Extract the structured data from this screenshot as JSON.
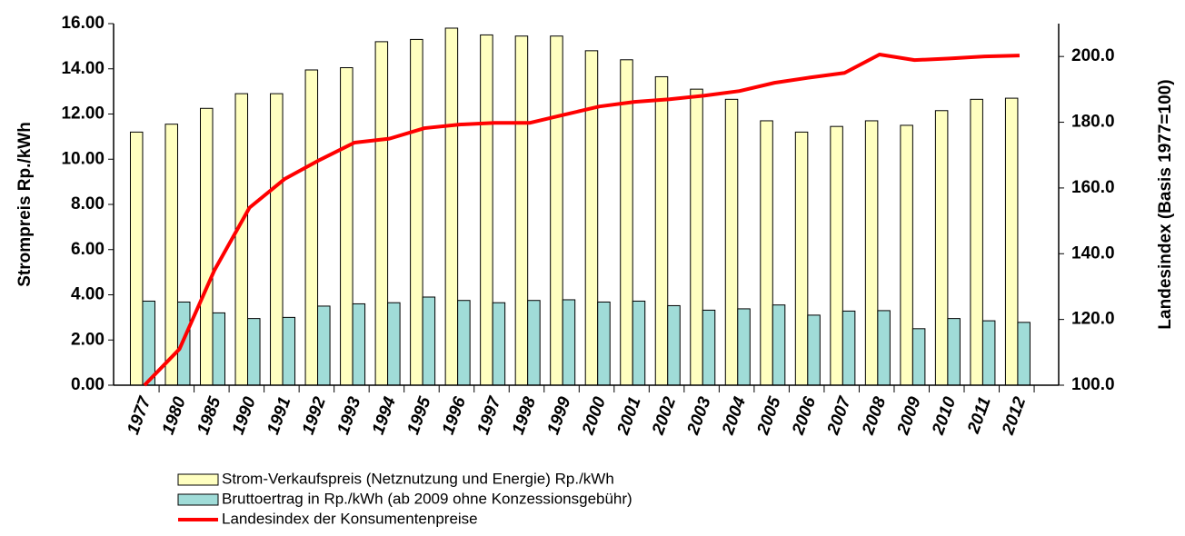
{
  "chart_data": {
    "type": "bar-line",
    "ylabel": "Strompreis Rp./kWh",
    "y2label": "Landesindex (Basis 1977=100)",
    "categories": [
      "1977",
      "1980",
      "1985",
      "1990",
      "1991",
      "1992",
      "1993",
      "1994",
      "1995",
      "1996",
      "1997",
      "1998",
      "1999",
      "2000",
      "2001",
      "2002",
      "2003",
      "2004",
      "2005",
      "2006",
      "2007",
      "2008",
      "2009",
      "2010",
      "2011",
      "2012"
    ],
    "ylim": [
      0,
      16
    ],
    "yticks": [
      {
        "value": 0,
        "label": "0.00"
      },
      {
        "value": 2,
        "label": "2.00"
      },
      {
        "value": 4,
        "label": "4.00"
      },
      {
        "value": 6,
        "label": "6.00"
      },
      {
        "value": 8,
        "label": "8.00"
      },
      {
        "value": 10,
        "label": "10.00"
      },
      {
        "value": 12,
        "label": "12.00"
      },
      {
        "value": 14,
        "label": "14.00"
      },
      {
        "value": 16,
        "label": "16.00"
      }
    ],
    "y2lim": [
      100,
      210
    ],
    "y2ticks": [
      {
        "value": 100,
        "label": "100.0"
      },
      {
        "value": 120,
        "label": "120.0"
      },
      {
        "value": 140,
        "label": "140.0"
      },
      {
        "value": 160,
        "label": "160.0"
      },
      {
        "value": 180,
        "label": "180.0"
      },
      {
        "value": 200,
        "label": "200.0"
      }
    ],
    "series": [
      {
        "name": "Strom-Verkaufspreis (Netznutzung und Energie) Rp./kWh",
        "kind": "bar",
        "color": "#ffffc0",
        "values": [
          11.2,
          11.55,
          12.25,
          12.9,
          12.9,
          13.95,
          14.05,
          15.2,
          15.3,
          15.8,
          15.5,
          15.45,
          15.45,
          14.8,
          14.4,
          13.65,
          13.1,
          12.65,
          11.7,
          11.2,
          11.45,
          11.7,
          11.5,
          12.15,
          12.65,
          12.7
        ]
      },
      {
        "name": "Bruttoertrag in Rp./kWh (ab 2009 ohne Konzessionsgebühr)",
        "kind": "bar",
        "color": "#a0dcd8",
        "values": [
          3.72,
          3.68,
          3.2,
          2.95,
          3.0,
          3.5,
          3.6,
          3.65,
          3.9,
          3.75,
          3.65,
          3.75,
          3.78,
          3.68,
          3.72,
          3.52,
          3.32,
          3.38,
          3.55,
          3.1,
          3.28,
          3.3,
          2.5,
          2.95,
          2.85,
          2.78
        ]
      },
      {
        "name": "Landesindex der Konsumentenpreise",
        "kind": "line",
        "axis": "y2",
        "color": "#ff0000",
        "values": [
          100,
          111,
          135,
          154,
          162.7,
          168.5,
          173.8,
          175,
          178.2,
          179.3,
          179.8,
          179.8,
          182.3,
          184.8,
          186.2,
          187,
          188.1,
          189.5,
          192,
          193.6,
          195,
          200.6,
          198.9,
          199.4,
          200,
          200.3
        ]
      }
    ]
  }
}
